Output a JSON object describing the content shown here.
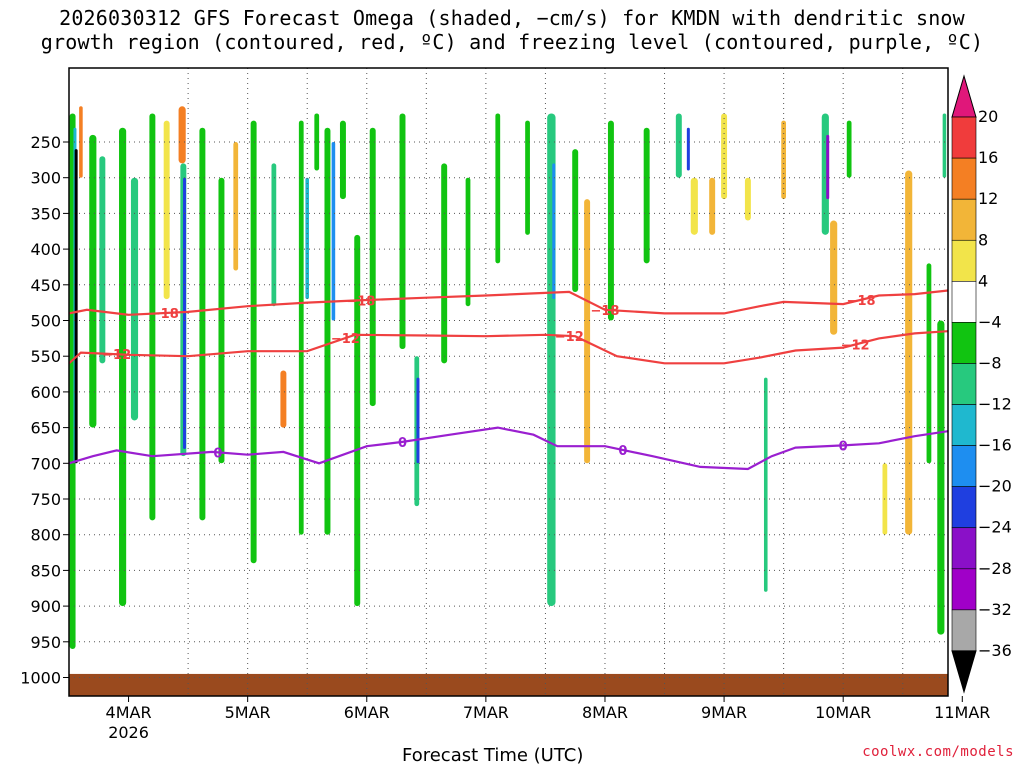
{
  "chart_data": {
    "type": "heatmap",
    "title_line1": "2026030312 GFS Forecast Omega (shaded, −cm/s) for KMDN with dendritic snow",
    "title_line2": "growth region (contoured, red, ºC) and freezing level (contoured, purple, ºC)",
    "xlabel": "Forecast Time (UTC)",
    "x_ticks": [
      "4MAR",
      "5MAR",
      "6MAR",
      "7MAR",
      "8MAR",
      "9MAR",
      "10MAR",
      "11MAR"
    ],
    "x_year": "2026",
    "x_range_days": [
      3.5,
      10.88
    ],
    "y_ticks": [
      250,
      300,
      350,
      400,
      450,
      500,
      550,
      600,
      650,
      700,
      750,
      800,
      850,
      900,
      950,
      1000
    ],
    "ylim_hpa": [
      200,
      1010
    ],
    "colorbar_labels": [
      "20",
      "16",
      "12",
      "8",
      "4",
      "−4",
      "−8",
      "−12",
      "−16",
      "−20",
      "−24",
      "−28",
      "−32",
      "−36"
    ],
    "colorbar_colors": [
      "#e0177a",
      "#f03c3c",
      "#f47f23",
      "#f2b538",
      "#f2e44a",
      "#ffffff",
      "#11c411",
      "#27c97e",
      "#1fb8cf",
      "#1e8ef0",
      "#1f3fe0",
      "#8a10c8",
      "#a000c8",
      "#a8a8a8",
      "#000000"
    ],
    "contour_labels": {
      "dgz_upper": "−18",
      "dgz_lower": "−12",
      "freezing": "0"
    },
    "dgz_upper_hpa": [
      [
        3.5,
        490
      ],
      [
        3.65,
        485
      ],
      [
        4.0,
        492
      ],
      [
        4.5,
        488
      ],
      [
        5.0,
        480
      ],
      [
        5.5,
        475
      ],
      [
        5.9,
        472
      ],
      [
        6.5,
        468
      ],
      [
        7.0,
        465
      ],
      [
        7.4,
        462
      ],
      [
        7.7,
        460
      ],
      [
        8.0,
        485
      ],
      [
        8.5,
        490
      ],
      [
        9.0,
        490
      ],
      [
        9.3,
        480
      ],
      [
        9.5,
        474
      ],
      [
        10.0,
        477
      ],
      [
        10.3,
        465
      ],
      [
        10.6,
        463
      ],
      [
        10.88,
        458
      ]
    ],
    "dgz_lower_hpa": [
      [
        3.5,
        560
      ],
      [
        3.6,
        545
      ],
      [
        4.0,
        548
      ],
      [
        4.5,
        550
      ],
      [
        5.0,
        543
      ],
      [
        5.5,
        543
      ],
      [
        5.9,
        520
      ],
      [
        6.5,
        521
      ],
      [
        7.0,
        522
      ],
      [
        7.5,
        520
      ],
      [
        7.75,
        522
      ],
      [
        8.1,
        550
      ],
      [
        8.5,
        560
      ],
      [
        9.0,
        560
      ],
      [
        9.3,
        552
      ],
      [
        9.6,
        542
      ],
      [
        10.0,
        538
      ],
      [
        10.3,
        525
      ],
      [
        10.6,
        518
      ],
      [
        10.88,
        515
      ]
    ],
    "freezing_hpa": [
      [
        3.5,
        700
      ],
      [
        3.7,
        690
      ],
      [
        3.9,
        682
      ],
      [
        4.2,
        690
      ],
      [
        4.7,
        684
      ],
      [
        5.0,
        688
      ],
      [
        5.3,
        684
      ],
      [
        5.6,
        700
      ],
      [
        6.0,
        676
      ],
      [
        6.3,
        670
      ],
      [
        6.7,
        660
      ],
      [
        7.1,
        650
      ],
      [
        7.4,
        660
      ],
      [
        7.6,
        676
      ],
      [
        8.0,
        676
      ],
      [
        8.4,
        690
      ],
      [
        8.8,
        705
      ],
      [
        9.2,
        708
      ],
      [
        9.4,
        690
      ],
      [
        9.6,
        678
      ],
      [
        10.0,
        675
      ],
      [
        10.3,
        672
      ],
      [
        10.6,
        662
      ],
      [
        10.88,
        655
      ]
    ],
    "omega_cells": [
      {
        "day": 3.53,
        "top": 210,
        "bottom": 960,
        "w": 0.05,
        "level": -8
      },
      {
        "day": 3.55,
        "top": 230,
        "bottom": 700,
        "w": 0.025,
        "level": -16
      },
      {
        "day": 3.56,
        "top": 260,
        "bottom": 700,
        "w": 0.015,
        "level": -36
      },
      {
        "day": 3.6,
        "top": 200,
        "bottom": 300,
        "w": 0.03,
        "level": 12
      },
      {
        "day": 3.7,
        "top": 240,
        "bottom": 650,
        "w": 0.06,
        "level": -8
      },
      {
        "day": 3.78,
        "top": 270,
        "bottom": 560,
        "w": 0.05,
        "level": -12
      },
      {
        "day": 3.95,
        "top": 230,
        "bottom": 900,
        "w": 0.06,
        "level": -8
      },
      {
        "day": 4.05,
        "top": 300,
        "bottom": 640,
        "w": 0.06,
        "level": -12
      },
      {
        "day": 4.2,
        "top": 210,
        "bottom": 780,
        "w": 0.05,
        "level": -8
      },
      {
        "day": 4.32,
        "top": 220,
        "bottom": 470,
        "w": 0.05,
        "level": 4
      },
      {
        "day": 4.45,
        "top": 200,
        "bottom": 280,
        "w": 0.06,
        "level": 12
      },
      {
        "day": 4.46,
        "top": 280,
        "bottom": 690,
        "w": 0.05,
        "level": -12
      },
      {
        "day": 4.47,
        "top": 300,
        "bottom": 680,
        "w": 0.012,
        "level": -24
      },
      {
        "day": 4.62,
        "top": 230,
        "bottom": 780,
        "w": 0.05,
        "level": -8
      },
      {
        "day": 4.78,
        "top": 300,
        "bottom": 700,
        "w": 0.05,
        "level": -8
      },
      {
        "day": 4.9,
        "top": 250,
        "bottom": 430,
        "w": 0.04,
        "level": 8
      },
      {
        "day": 5.05,
        "top": 220,
        "bottom": 840,
        "w": 0.05,
        "level": -8
      },
      {
        "day": 5.22,
        "top": 280,
        "bottom": 480,
        "w": 0.04,
        "level": -12
      },
      {
        "day": 5.3,
        "top": 570,
        "bottom": 650,
        "w": 0.05,
        "level": 12
      },
      {
        "day": 5.45,
        "top": 220,
        "bottom": 800,
        "w": 0.04,
        "level": -8
      },
      {
        "day": 5.5,
        "top": 300,
        "bottom": 470,
        "w": 0.03,
        "level": -16
      },
      {
        "day": 5.58,
        "top": 210,
        "bottom": 290,
        "w": 0.04,
        "level": -8
      },
      {
        "day": 5.67,
        "top": 230,
        "bottom": 800,
        "w": 0.05,
        "level": -8
      },
      {
        "day": 5.72,
        "top": 250,
        "bottom": 500,
        "w": 0.03,
        "level": -20
      },
      {
        "day": 5.8,
        "top": 220,
        "bottom": 330,
        "w": 0.05,
        "level": -8
      },
      {
        "day": 5.92,
        "top": 380,
        "bottom": 900,
        "w": 0.05,
        "level": -8
      },
      {
        "day": 6.05,
        "top": 230,
        "bottom": 620,
        "w": 0.05,
        "level": -8
      },
      {
        "day": 6.3,
        "top": 210,
        "bottom": 540,
        "w": 0.05,
        "level": -8
      },
      {
        "day": 6.42,
        "top": 550,
        "bottom": 760,
        "w": 0.04,
        "level": -12
      },
      {
        "day": 6.43,
        "top": 580,
        "bottom": 700,
        "w": 0.015,
        "level": -24
      },
      {
        "day": 6.65,
        "top": 280,
        "bottom": 560,
        "w": 0.05,
        "level": -8
      },
      {
        "day": 6.85,
        "top": 300,
        "bottom": 480,
        "w": 0.04,
        "level": -8
      },
      {
        "day": 7.1,
        "top": 210,
        "bottom": 420,
        "w": 0.04,
        "level": -8
      },
      {
        "day": 7.35,
        "top": 220,
        "bottom": 380,
        "w": 0.04,
        "level": -8
      },
      {
        "day": 7.55,
        "top": 210,
        "bottom": 900,
        "w": 0.07,
        "level": -12
      },
      {
        "day": 7.57,
        "top": 280,
        "bottom": 470,
        "w": 0.02,
        "level": -20
      },
      {
        "day": 7.75,
        "top": 260,
        "bottom": 460,
        "w": 0.05,
        "level": -8
      },
      {
        "day": 7.85,
        "top": 330,
        "bottom": 700,
        "w": 0.05,
        "level": 8
      },
      {
        "day": 8.05,
        "top": 220,
        "bottom": 500,
        "w": 0.05,
        "level": -8
      },
      {
        "day": 8.35,
        "top": 230,
        "bottom": 420,
        "w": 0.05,
        "level": -8
      },
      {
        "day": 8.62,
        "top": 210,
        "bottom": 300,
        "w": 0.05,
        "level": -12
      },
      {
        "day": 8.7,
        "top": 230,
        "bottom": 290,
        "w": 0.02,
        "level": -24
      },
      {
        "day": 8.75,
        "top": 300,
        "bottom": 380,
        "w": 0.06,
        "level": 4
      },
      {
        "day": 8.9,
        "top": 300,
        "bottom": 380,
        "w": 0.05,
        "level": 8
      },
      {
        "day": 9.0,
        "top": 210,
        "bottom": 330,
        "w": 0.05,
        "level": 4
      },
      {
        "day": 9.2,
        "top": 300,
        "bottom": 360,
        "w": 0.05,
        "level": 4
      },
      {
        "day": 9.35,
        "top": 580,
        "bottom": 880,
        "w": 0.03,
        "level": -12
      },
      {
        "day": 9.5,
        "top": 220,
        "bottom": 330,
        "w": 0.04,
        "level": 8
      },
      {
        "day": 9.85,
        "top": 210,
        "bottom": 380,
        "w": 0.06,
        "level": -12
      },
      {
        "day": 9.87,
        "top": 240,
        "bottom": 330,
        "w": 0.025,
        "level": -28
      },
      {
        "day": 9.92,
        "top": 360,
        "bottom": 520,
        "w": 0.06,
        "level": 8
      },
      {
        "day": 10.05,
        "top": 220,
        "bottom": 300,
        "w": 0.04,
        "level": -8
      },
      {
        "day": 10.35,
        "top": 700,
        "bottom": 800,
        "w": 0.04,
        "level": 4
      },
      {
        "day": 10.55,
        "top": 290,
        "bottom": 800,
        "w": 0.06,
        "level": 8
      },
      {
        "day": 10.72,
        "top": 420,
        "bottom": 700,
        "w": 0.04,
        "level": -8
      },
      {
        "day": 10.82,
        "top": 500,
        "bottom": 940,
        "w": 0.06,
        "level": -8
      },
      {
        "day": 10.85,
        "top": 210,
        "bottom": 300,
        "w": 0.03,
        "level": -12
      }
    ]
  },
  "credit": "coolwx.com/models"
}
